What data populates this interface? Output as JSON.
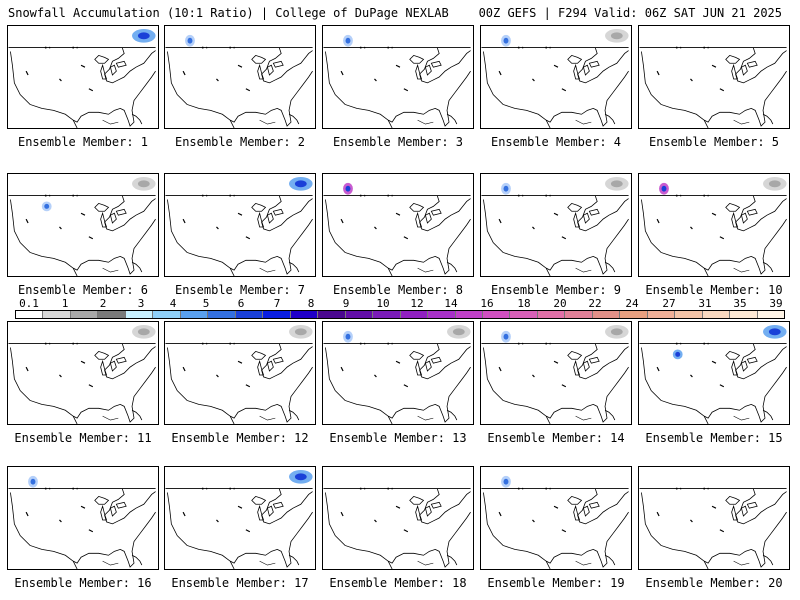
{
  "header": {
    "left": "Snowfall Accumulation (10:1 Ratio) | College of DuPage NEXLAB",
    "right": "00Z GEFS | F294 Valid: 06Z SAT JUN 21 2025"
  },
  "members": [
    {
      "label": "Ensemble Member: 1",
      "snow": [
        {
          "a": "ne",
          "k": "heavy"
        }
      ]
    },
    {
      "label": "Ensemble Member: 2",
      "snow": [
        {
          "a": "nw",
          "k": "light"
        }
      ]
    },
    {
      "label": "Ensemble Member: 3",
      "snow": [
        {
          "a": "nw",
          "k": "light"
        }
      ]
    },
    {
      "label": "Ensemble Member: 4",
      "snow": [
        {
          "a": "nw",
          "k": "light"
        },
        {
          "a": "ne",
          "k": "gray"
        }
      ]
    },
    {
      "label": "Ensemble Member: 5",
      "snow": []
    },
    {
      "label": "Ensemble Member: 6",
      "snow": [
        {
          "a": "rockies",
          "k": "light"
        },
        {
          "a": "ne",
          "k": "gray"
        }
      ]
    },
    {
      "label": "Ensemble Member: 7",
      "snow": [
        {
          "a": "ne",
          "k": "heavy"
        }
      ]
    },
    {
      "label": "Ensemble Member: 8",
      "snow": [
        {
          "a": "nw",
          "k": "purple"
        }
      ]
    },
    {
      "label": "Ensemble Member: 9",
      "snow": [
        {
          "a": "nw",
          "k": "light"
        },
        {
          "a": "ne",
          "k": "gray"
        }
      ]
    },
    {
      "label": "Ensemble Member: 10",
      "snow": [
        {
          "a": "nw",
          "k": "purple"
        },
        {
          "a": "ne",
          "k": "gray"
        }
      ]
    },
    {
      "label": "Ensemble Member: 11",
      "snow": [
        {
          "a": "ne",
          "k": "gray"
        }
      ]
    },
    {
      "label": "Ensemble Member: 12",
      "snow": [
        {
          "a": "ne",
          "k": "gray"
        }
      ]
    },
    {
      "label": "Ensemble Member: 13",
      "snow": [
        {
          "a": "nw",
          "k": "light"
        },
        {
          "a": "ne",
          "k": "gray"
        }
      ]
    },
    {
      "label": "Ensemble Member: 14",
      "snow": [
        {
          "a": "nw",
          "k": "light"
        },
        {
          "a": "ne",
          "k": "gray"
        }
      ]
    },
    {
      "label": "Ensemble Member: 15",
      "snow": [
        {
          "a": "rockies",
          "k": "heavy"
        },
        {
          "a": "ne",
          "k": "heavy"
        }
      ]
    },
    {
      "label": "Ensemble Member: 16",
      "snow": [
        {
          "a": "nw",
          "k": "light"
        }
      ]
    },
    {
      "label": "Ensemble Member: 17",
      "snow": [
        {
          "a": "ne",
          "k": "heavy"
        }
      ]
    },
    {
      "label": "Ensemble Member: 18",
      "snow": []
    },
    {
      "label": "Ensemble Member: 19",
      "snow": [
        {
          "a": "nw",
          "k": "light"
        }
      ]
    },
    {
      "label": "Ensemble Member: 20",
      "snow": []
    }
  ],
  "legend": {
    "labels": [
      "0.1",
      "1",
      "2",
      "3",
      "4",
      "5",
      "6",
      "7",
      "8",
      "9",
      "10",
      "12",
      "14",
      "16",
      "18",
      "20",
      "22",
      "24",
      "27",
      "31",
      "35",
      "39"
    ],
    "colors": [
      "#ffffff",
      "#d8d8d8",
      "#a8a8a8",
      "#7a7a7a",
      "#c8f0ff",
      "#90d0f8",
      "#5aa0ee",
      "#3470e0",
      "#1a40d8",
      "#0a1ee0",
      "#2000c8",
      "#4a0890",
      "#620ea8",
      "#7a1cb8",
      "#9020c0",
      "#a830c8",
      "#c040c8",
      "#d050c0",
      "#d860b8",
      "#e070a8",
      "#e08098",
      "#e09088",
      "#e8a080",
      "#f0b098",
      "#f4c4a8",
      "#f8d8c0",
      "#fce8d4",
      "#fff4e6"
    ]
  }
}
